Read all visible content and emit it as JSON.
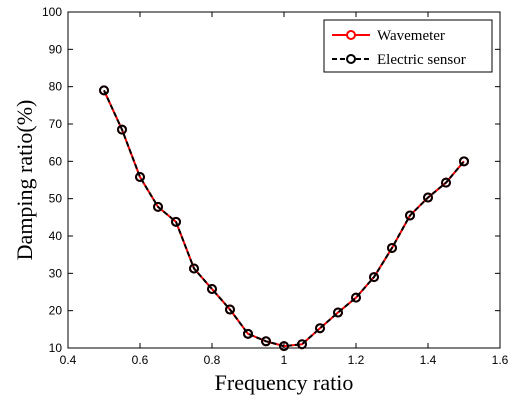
{
  "chart_data": {
    "type": "line",
    "xlabel": "Frequency ratio",
    "ylabel": "Damping ratio(%)",
    "xlim": [
      0.4,
      1.6
    ],
    "ylim": [
      10,
      100
    ],
    "xticks": [
      "0.4",
      "0.6",
      "0.8",
      "1",
      "1.2",
      "1.4",
      "1.6"
    ],
    "yticks": [
      "10",
      "20",
      "30",
      "40",
      "50",
      "60",
      "70",
      "80",
      "90",
      "100"
    ],
    "grid": false,
    "legend_position": "top-right",
    "x": [
      0.5,
      0.55,
      0.6,
      0.65,
      0.7,
      0.75,
      0.8,
      0.85,
      0.9,
      0.95,
      1.0,
      1.05,
      1.1,
      1.15,
      1.2,
      1.25,
      1.3,
      1.35,
      1.4,
      1.45,
      1.5
    ],
    "series": [
      {
        "name": "Wavemeter",
        "color": "#ff0000",
        "style": "solid",
        "marker": "circle",
        "values": [
          79,
          68.5,
          55.8,
          47.8,
          43.8,
          31.3,
          25.8,
          20.3,
          13.8,
          11.8,
          10.5,
          11.0,
          15.3,
          19.5,
          23.5,
          29.0,
          36.8,
          45.5,
          50.3,
          54.3,
          60.0
        ]
      },
      {
        "name": "Electric sensor",
        "color": "#000000",
        "style": "dashed",
        "marker": "circle",
        "values": [
          79,
          68.5,
          55.8,
          47.8,
          43.8,
          31.3,
          25.8,
          20.3,
          13.8,
          11.8,
          10.5,
          11.0,
          15.3,
          19.5,
          23.5,
          29.0,
          36.8,
          45.5,
          50.3,
          54.3,
          60.0
        ]
      }
    ]
  }
}
